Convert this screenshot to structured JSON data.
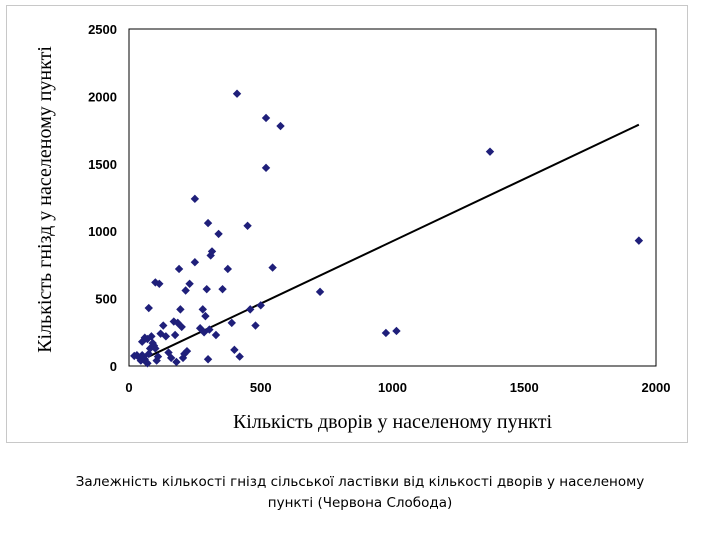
{
  "caption": {
    "line1": "Залежність кількості гнізд сільської ластівки від кількості дворів у населеному",
    "line2": "пункті (Червона Слобода)"
  },
  "chart_data": {
    "type": "scatter",
    "title": "",
    "xlabel": "Кількість дворів у населеному пункті",
    "ylabel": "Кількість гнізд у населеному пункті",
    "xlim": [
      0,
      2000
    ],
    "ylim": [
      0,
      2500
    ],
    "xticks": [
      0,
      500,
      1000,
      1500,
      2000
    ],
    "yticks": [
      0,
      500,
      1000,
      1500,
      2000,
      2500
    ],
    "grid": false,
    "marker_color": "#1f1f7a",
    "points": [
      [
        20,
        75
      ],
      [
        30,
        80
      ],
      [
        40,
        60
      ],
      [
        45,
        40
      ],
      [
        50,
        80
      ],
      [
        55,
        70
      ],
      [
        60,
        50
      ],
      [
        65,
        30
      ],
      [
        70,
        20
      ],
      [
        75,
        90
      ],
      [
        50,
        180
      ],
      [
        60,
        210
      ],
      [
        70,
        200
      ],
      [
        80,
        130
      ],
      [
        85,
        220
      ],
      [
        90,
        170
      ],
      [
        95,
        150
      ],
      [
        100,
        130
      ],
      [
        105,
        40
      ],
      [
        110,
        70
      ],
      [
        75,
        430
      ],
      [
        100,
        620
      ],
      [
        115,
        610
      ],
      [
        120,
        240
      ],
      [
        130,
        300
      ],
      [
        140,
        220
      ],
      [
        150,
        100
      ],
      [
        160,
        60
      ],
      [
        170,
        330
      ],
      [
        175,
        230
      ],
      [
        180,
        30
      ],
      [
        185,
        320
      ],
      [
        190,
        720
      ],
      [
        195,
        420
      ],
      [
        200,
        290
      ],
      [
        205,
        60
      ],
      [
        210,
        90
      ],
      [
        215,
        560
      ],
      [
        220,
        110
      ],
      [
        230,
        610
      ],
      [
        250,
        770
      ],
      [
        250,
        1240
      ],
      [
        270,
        280
      ],
      [
        280,
        420
      ],
      [
        285,
        250
      ],
      [
        290,
        370
      ],
      [
        295,
        570
      ],
      [
        300,
        1060
      ],
      [
        300,
        50
      ],
      [
        305,
        270
      ],
      [
        310,
        820
      ],
      [
        315,
        850
      ],
      [
        330,
        230
      ],
      [
        340,
        980
      ],
      [
        355,
        570
      ],
      [
        375,
        720
      ],
      [
        390,
        320
      ],
      [
        400,
        120
      ],
      [
        410,
        2020
      ],
      [
        420,
        70
      ],
      [
        450,
        1040
      ],
      [
        460,
        420
      ],
      [
        480,
        300
      ],
      [
        500,
        450
      ],
      [
        520,
        1840
      ],
      [
        520,
        1470
      ],
      [
        545,
        730
      ],
      [
        575,
        1780
      ],
      [
        725,
        550
      ],
      [
        975,
        245
      ],
      [
        1015,
        260
      ],
      [
        1370,
        1590
      ],
      [
        1935,
        930
      ]
    ],
    "trendline": {
      "x": [
        75,
        1935
      ],
      "y": [
        70,
        1790
      ]
    }
  }
}
